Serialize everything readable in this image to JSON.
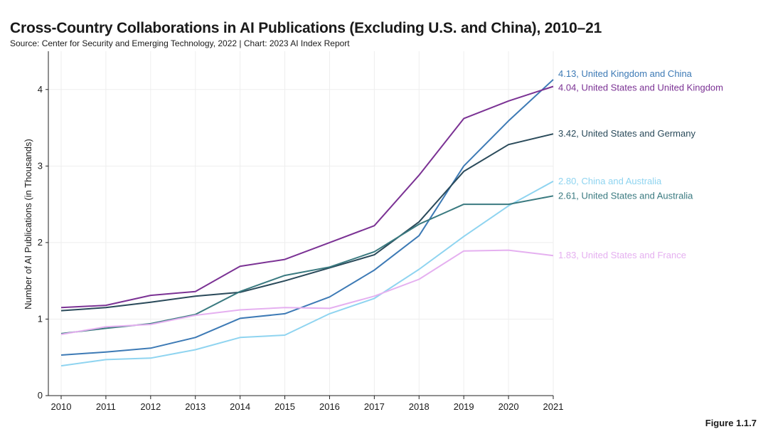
{
  "title": "Cross-Country Collaborations in AI Publications (Excluding U.S. and China), 2010–21",
  "subtitle": "Source: Center for Security and Emerging Technology, 2022 | Chart: 2023 AI Index Report",
  "figure_label": "Figure 1.1.7",
  "chart_data": {
    "type": "line",
    "title": "Cross-Country Collaborations in AI Publications (Excluding U.S. and China), 2010–21",
    "xlabel": "",
    "ylabel": "Number of AI Publications (in Thousands)",
    "x": [
      2010,
      2011,
      2012,
      2013,
      2014,
      2015,
      2016,
      2017,
      2018,
      2019,
      2020,
      2021
    ],
    "xlim": [
      2010,
      2021
    ],
    "ylim": [
      0,
      4.5
    ],
    "yticks": [
      0,
      1,
      2,
      3,
      4
    ],
    "grid": true,
    "series": [
      {
        "name": "United Kingdom and China",
        "end_label": "4.13, United Kingdom and China",
        "color": "#3d7ab5",
        "values": [
          0.53,
          0.57,
          0.62,
          0.76,
          1.01,
          1.07,
          1.29,
          1.64,
          2.09,
          3.0,
          3.59,
          4.13
        ]
      },
      {
        "name": "United States and United Kingdom",
        "end_label": "4.04, United States and United Kingdom",
        "color": "#7b3294",
        "values": [
          1.15,
          1.18,
          1.31,
          1.36,
          1.69,
          1.78,
          2.0,
          2.22,
          2.88,
          3.62,
          3.85,
          4.04
        ]
      },
      {
        "name": "United States and Germany",
        "end_label": "3.42, United States and Germany",
        "color": "#2a4a5a",
        "values": [
          1.11,
          1.15,
          1.22,
          1.3,
          1.35,
          1.5,
          1.67,
          1.84,
          2.27,
          2.93,
          3.28,
          3.42
        ]
      },
      {
        "name": "China and Australia",
        "end_label": "2.80, China and Australia",
        "color": "#8fd4f0",
        "values": [
          0.39,
          0.47,
          0.49,
          0.6,
          0.76,
          0.79,
          1.07,
          1.27,
          1.65,
          2.08,
          2.48,
          2.8
        ]
      },
      {
        "name": "United States and Australia",
        "end_label": "2.61, United States and Australia",
        "color": "#3a7a80",
        "values": [
          0.81,
          0.88,
          0.94,
          1.06,
          1.36,
          1.57,
          1.68,
          1.88,
          2.24,
          2.5,
          2.5,
          2.61
        ]
      },
      {
        "name": "United States and France",
        "end_label": "1.83, United States and France",
        "color": "#e5b0f0",
        "values": [
          0.8,
          0.9,
          0.93,
          1.05,
          1.12,
          1.15,
          1.14,
          1.3,
          1.52,
          1.89,
          1.9,
          1.83
        ]
      }
    ]
  }
}
